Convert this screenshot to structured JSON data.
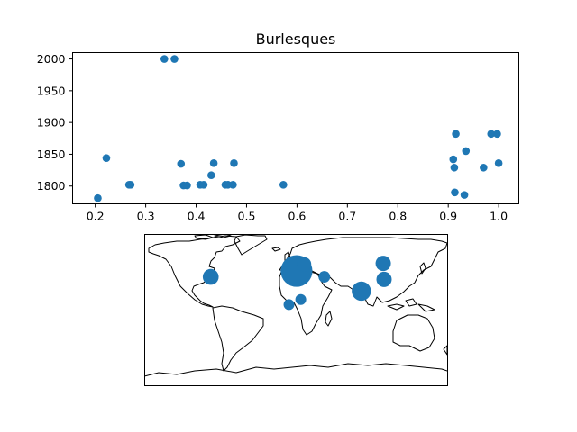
{
  "chart_data": [
    {
      "type": "scatter",
      "title": "Burlesques",
      "xlabel": "",
      "ylabel": "",
      "xlim": [
        0.155,
        1.04
      ],
      "ylim": [
        1772,
        2010
      ],
      "xticks": [
        0.2,
        0.3,
        0.4,
        0.5,
        0.6,
        0.7,
        0.8,
        0.9,
        1.0
      ],
      "xtick_labels": [
        "0.2",
        "0.3",
        "0.4",
        "0.5",
        "0.6",
        "0.7",
        "0.8",
        "0.9",
        "1.0"
      ],
      "yticks": [
        1800,
        1850,
        1900,
        1950,
        2000
      ],
      "ytick_labels": [
        "1800",
        "1850",
        "1900",
        "1950",
        "2000"
      ],
      "grid": false,
      "color": "#1f77b4",
      "points": [
        {
          "x": 0.205,
          "y": 1781
        },
        {
          "x": 0.222,
          "y": 1844
        },
        {
          "x": 0.267,
          "y": 1802
        },
        {
          "x": 0.27,
          "y": 1802
        },
        {
          "x": 0.337,
          "y": 2000
        },
        {
          "x": 0.357,
          "y": 2000
        },
        {
          "x": 0.37,
          "y": 1835
        },
        {
          "x": 0.375,
          "y": 1801
        },
        {
          "x": 0.382,
          "y": 1801
        },
        {
          "x": 0.408,
          "y": 1802
        },
        {
          "x": 0.415,
          "y": 1802
        },
        {
          "x": 0.43,
          "y": 1817
        },
        {
          "x": 0.435,
          "y": 1836
        },
        {
          "x": 0.458,
          "y": 1802
        },
        {
          "x": 0.463,
          "y": 1802
        },
        {
          "x": 0.473,
          "y": 1802
        },
        {
          "x": 0.475,
          "y": 1836
        },
        {
          "x": 0.573,
          "y": 1802
        },
        {
          "x": 0.91,
          "y": 1842
        },
        {
          "x": 0.912,
          "y": 1829
        },
        {
          "x": 0.913,
          "y": 1790
        },
        {
          "x": 0.915,
          "y": 1882
        },
        {
          "x": 0.932,
          "y": 1786
        },
        {
          "x": 0.935,
          "y": 1855
        },
        {
          "x": 0.97,
          "y": 1829
        },
        {
          "x": 0.985,
          "y": 1882
        },
        {
          "x": 0.997,
          "y": 1882
        },
        {
          "x": 1.0,
          "y": 1836
        }
      ]
    },
    {
      "type": "scatter",
      "subtype": "geographic bubble map",
      "projection": "plate carree",
      "lon_range": [
        -180,
        180
      ],
      "lat_range": [
        -90,
        90
      ],
      "color": "#1f77b4",
      "points": [
        {
          "lon": -101,
          "lat": 39,
          "size": 1.5
        },
        {
          "lon": 1,
          "lat": 46,
          "size": 6.0
        },
        {
          "lon": 10,
          "lat": 54,
          "size": 1.2
        },
        {
          "lon": 34,
          "lat": 39,
          "size": 0.8
        },
        {
          "lon": 6,
          "lat": 12,
          "size": 0.7
        },
        {
          "lon": -8,
          "lat": 6,
          "size": 0.7
        },
        {
          "lon": 78,
          "lat": 22,
          "size": 2.2
        },
        {
          "lon": 105,
          "lat": 36,
          "size": 1.4
        },
        {
          "lon": 104,
          "lat": 55,
          "size": 1.4
        }
      ]
    }
  ]
}
